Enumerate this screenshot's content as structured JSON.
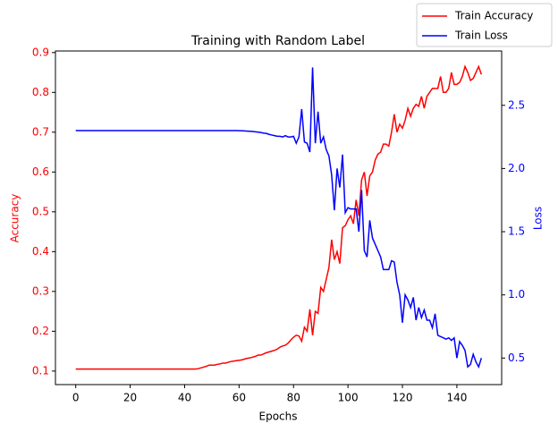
{
  "chart_data": {
    "type": "line",
    "title": "Training with Random Label",
    "xlabel": "Epochs",
    "ylabel": "Accuracy",
    "y2label": "Loss",
    "x": [
      0,
      1,
      2,
      3,
      4,
      5,
      6,
      7,
      8,
      9,
      10,
      11,
      12,
      13,
      14,
      15,
      16,
      17,
      18,
      19,
      20,
      21,
      22,
      23,
      24,
      25,
      26,
      27,
      28,
      29,
      30,
      31,
      32,
      33,
      34,
      35,
      36,
      37,
      38,
      39,
      40,
      41,
      42,
      43,
      44,
      45,
      46,
      47,
      48,
      49,
      50,
      51,
      52,
      53,
      54,
      55,
      56,
      57,
      58,
      59,
      60,
      61,
      62,
      63,
      64,
      65,
      66,
      67,
      68,
      69,
      70,
      71,
      72,
      73,
      74,
      75,
      76,
      77,
      78,
      79,
      80,
      81,
      82,
      83,
      84,
      85,
      86,
      87,
      88,
      89,
      90,
      91,
      92,
      93,
      94,
      95,
      96,
      97,
      98,
      99,
      100,
      101,
      102,
      103,
      104,
      105,
      106,
      107,
      108,
      109,
      110,
      111,
      112,
      113,
      114,
      115,
      116,
      117,
      118,
      119,
      120,
      121,
      122,
      123,
      124,
      125,
      126,
      127,
      128,
      129,
      130,
      131,
      132,
      133,
      134,
      135,
      136,
      137,
      138,
      139,
      140,
      141,
      142,
      143,
      144,
      145,
      146,
      147,
      148,
      149
    ],
    "series": [
      {
        "name": "Train Accuracy",
        "color": "#ff0000",
        "axis": "y",
        "values": [
          0.105,
          0.105,
          0.105,
          0.105,
          0.105,
          0.105,
          0.105,
          0.105,
          0.105,
          0.105,
          0.105,
          0.105,
          0.105,
          0.105,
          0.105,
          0.105,
          0.105,
          0.105,
          0.105,
          0.105,
          0.105,
          0.105,
          0.105,
          0.105,
          0.105,
          0.105,
          0.105,
          0.105,
          0.105,
          0.105,
          0.105,
          0.105,
          0.105,
          0.105,
          0.105,
          0.105,
          0.105,
          0.105,
          0.105,
          0.105,
          0.105,
          0.105,
          0.105,
          0.105,
          0.105,
          0.106,
          0.108,
          0.11,
          0.112,
          0.115,
          0.115,
          0.115,
          0.117,
          0.118,
          0.12,
          0.12,
          0.122,
          0.124,
          0.125,
          0.126,
          0.127,
          0.128,
          0.13,
          0.132,
          0.133,
          0.135,
          0.137,
          0.14,
          0.14,
          0.143,
          0.146,
          0.148,
          0.15,
          0.152,
          0.155,
          0.16,
          0.163,
          0.165,
          0.17,
          0.178,
          0.185,
          0.19,
          0.188,
          0.175,
          0.21,
          0.2,
          0.255,
          0.19,
          0.25,
          0.245,
          0.31,
          0.3,
          0.33,
          0.36,
          0.43,
          0.38,
          0.4,
          0.37,
          0.46,
          0.465,
          0.48,
          0.49,
          0.47,
          0.53,
          0.49,
          0.58,
          0.6,
          0.54,
          0.59,
          0.6,
          0.63,
          0.645,
          0.65,
          0.67,
          0.67,
          0.665,
          0.7,
          0.745,
          0.7,
          0.72,
          0.71,
          0.73,
          0.76,
          0.74,
          0.76,
          0.77,
          0.765,
          0.79,
          0.76,
          0.79,
          0.8,
          0.81,
          0.81,
          0.81,
          0.84,
          0.8,
          0.8,
          0.81,
          0.85,
          0.82,
          0.82,
          0.825,
          0.84,
          0.865,
          0.85,
          0.83,
          0.835,
          0.85,
          0.865,
          0.845
        ]
      },
      {
        "name": "Train Loss",
        "color": "#0000ff",
        "axis": "y2",
        "values": [
          2.3,
          2.3,
          2.3,
          2.3,
          2.3,
          2.3,
          2.3,
          2.3,
          2.3,
          2.3,
          2.3,
          2.3,
          2.3,
          2.3,
          2.3,
          2.3,
          2.3,
          2.3,
          2.3,
          2.3,
          2.3,
          2.3,
          2.3,
          2.3,
          2.3,
          2.3,
          2.3,
          2.3,
          2.3,
          2.3,
          2.3,
          2.3,
          2.3,
          2.3,
          2.3,
          2.3,
          2.3,
          2.3,
          2.3,
          2.3,
          2.3,
          2.3,
          2.3,
          2.3,
          2.3,
          2.3,
          2.3,
          2.3,
          2.3,
          2.3,
          2.3,
          2.3,
          2.3,
          2.3,
          2.3,
          2.3,
          2.3,
          2.3,
          2.3,
          2.3,
          2.299,
          2.298,
          2.297,
          2.296,
          2.295,
          2.293,
          2.29,
          2.288,
          2.285,
          2.28,
          2.278,
          2.27,
          2.265,
          2.26,
          2.255,
          2.255,
          2.25,
          2.26,
          2.25,
          2.25,
          2.255,
          2.2,
          2.25,
          2.47,
          2.21,
          2.2,
          2.13,
          2.8,
          2.2,
          2.45,
          2.2,
          2.25,
          2.15,
          2.1,
          1.95,
          1.67,
          2.0,
          1.85,
          2.11,
          1.65,
          1.69,
          1.68,
          1.68,
          1.68,
          1.5,
          1.83,
          1.35,
          1.3,
          1.59,
          1.45,
          1.4,
          1.35,
          1.3,
          1.2,
          1.2,
          1.2,
          1.27,
          1.26,
          1.1,
          1.0,
          0.78,
          1.0,
          0.96,
          0.9,
          0.98,
          0.8,
          0.9,
          0.82,
          0.88,
          0.8,
          0.8,
          0.74,
          0.85,
          0.68,
          0.67,
          0.66,
          0.65,
          0.66,
          0.64,
          0.66,
          0.5,
          0.63,
          0.6,
          0.56,
          0.43,
          0.45,
          0.53,
          0.47,
          0.43,
          0.5
        ]
      }
    ],
    "xlim": [
      -7.45,
      156.45
    ],
    "xticks": [
      0,
      20,
      40,
      60,
      80,
      100,
      120,
      140
    ],
    "ylim": [
      0.066,
      0.904
    ],
    "yticks": [
      0.1,
      0.2,
      0.3,
      0.4,
      0.5,
      0.6,
      0.7,
      0.8,
      0.9
    ],
    "y2lim": [
      0.29,
      2.93
    ],
    "y2ticks": [
      0.5,
      {
        "value": 1.0,
        "label": "1.0"
      },
      1.5,
      {
        "value": 2.0,
        "label": "2.0"
      },
      2.5
    ],
    "legend": "upper right"
  }
}
